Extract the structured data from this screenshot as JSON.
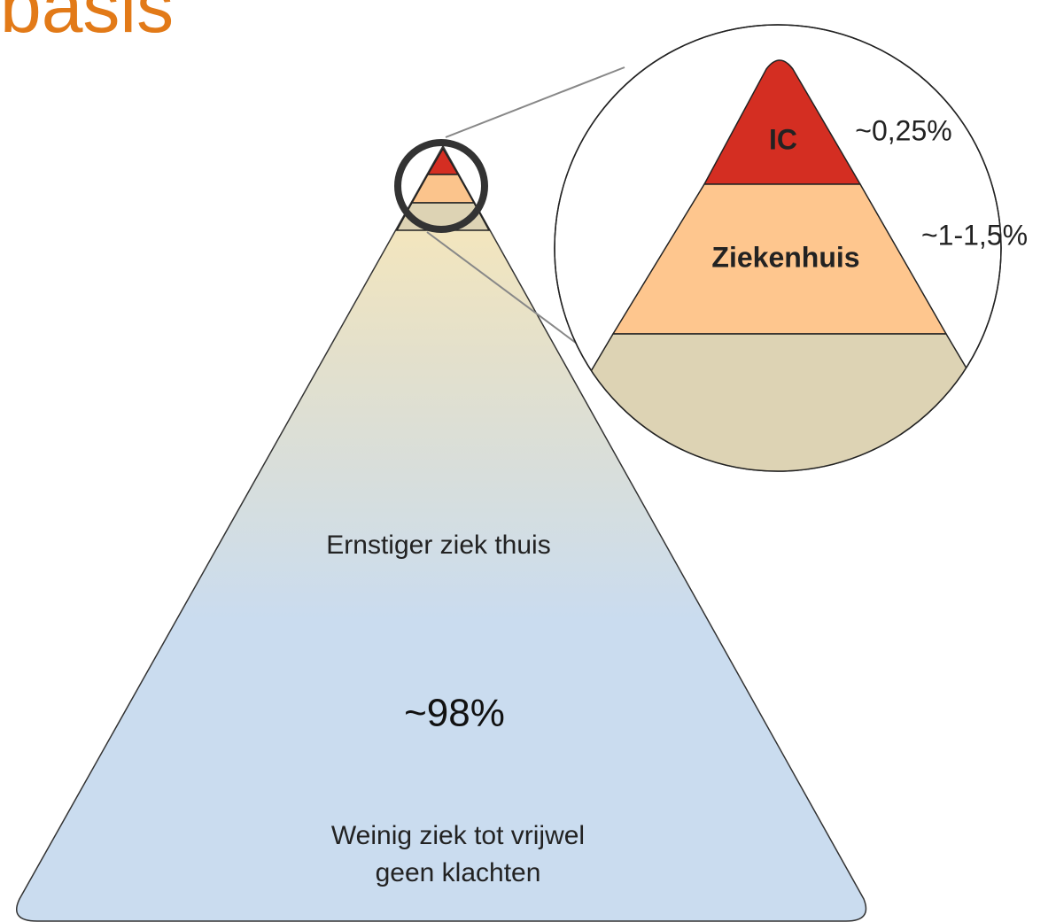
{
  "header": {
    "title": "basis"
  },
  "zoom": {
    "top": {
      "label": "IC",
      "share": "~0,25%"
    },
    "middle": {
      "label": "Ziekenhuis",
      "share": "~1-1,5%"
    }
  },
  "pyramid": {
    "upper_label": "Ernstiger ziek thuis",
    "share": "~98%",
    "lower_label": [
      "Weinig ziek tot vrijwel",
      "geen klachten"
    ]
  }
}
